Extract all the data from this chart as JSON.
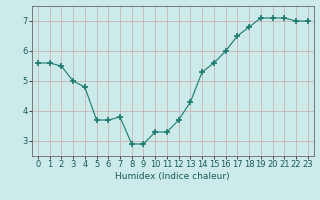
{
  "x": [
    0,
    1,
    2,
    3,
    4,
    5,
    6,
    7,
    8,
    9,
    10,
    11,
    12,
    13,
    14,
    15,
    16,
    17,
    18,
    19,
    20,
    21,
    22,
    23
  ],
  "y": [
    5.6,
    5.6,
    5.5,
    5.0,
    4.8,
    3.7,
    3.7,
    3.8,
    2.9,
    2.9,
    3.3,
    3.3,
    3.7,
    4.3,
    5.3,
    5.6,
    6.0,
    6.5,
    6.8,
    7.1,
    7.1,
    7.1,
    7.0,
    7.0
  ],
  "line_color": "#1a7a6e",
  "marker": "+",
  "marker_size": 4,
  "bg_color": "#cceaea",
  "grid_color": "#b8d8d8",
  "xlabel": "Humidex (Indice chaleur)",
  "xlim": [
    -0.5,
    23.5
  ],
  "ylim": [
    2.5,
    7.5
  ],
  "yticks": [
    3,
    4,
    5,
    6,
    7
  ],
  "xticks": [
    0,
    1,
    2,
    3,
    4,
    5,
    6,
    7,
    8,
    9,
    10,
    11,
    12,
    13,
    14,
    15,
    16,
    17,
    18,
    19,
    20,
    21,
    22,
    23
  ],
  "label_fontsize": 6.5,
  "tick_fontsize": 6
}
